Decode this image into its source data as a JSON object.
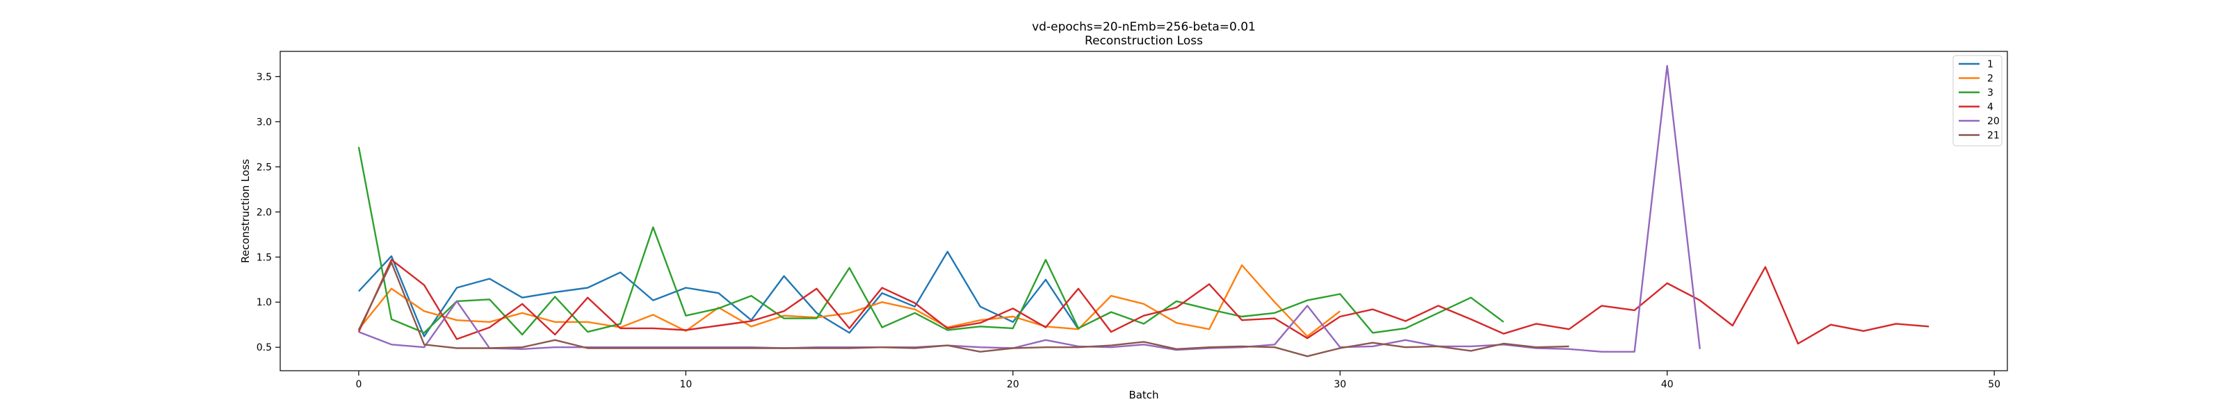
{
  "chart_data": {
    "type": "line",
    "title": "vd-epochs=20-nEmb=256-beta=0.01",
    "subtitle": "Reconstruction Loss",
    "xlabel": "Batch",
    "ylabel": "Reconstruction Loss",
    "xlim": [
      -2.4,
      50.4
    ],
    "ylim": [
      0.24,
      3.78
    ],
    "xticks": [
      0,
      10,
      20,
      30,
      40,
      50
    ],
    "yticks": [
      0.5,
      1.0,
      1.5,
      2.0,
      2.5,
      3.0,
      3.5
    ],
    "ytick_labels": [
      "0.5",
      "1.0",
      "1.5",
      "2.0",
      "2.5",
      "3.0",
      "3.5"
    ],
    "grid": false,
    "legend_position": "top-right",
    "series": [
      {
        "name": "1",
        "color": "#1f77b4",
        "x": [
          0,
          1,
          2,
          3,
          4,
          5,
          6,
          7,
          8,
          9,
          10,
          11,
          12,
          13,
          14,
          15,
          16,
          17,
          18,
          19,
          20,
          21,
          22
        ],
        "values": [
          1.12,
          1.51,
          0.62,
          1.16,
          1.26,
          1.05,
          1.11,
          1.16,
          1.33,
          1.02,
          1.16,
          1.1,
          0.8,
          1.29,
          0.88,
          0.66,
          1.1,
          0.95,
          1.56,
          0.95,
          0.78,
          1.25,
          0.7
        ]
      },
      {
        "name": "2",
        "color": "#ff7f0e",
        "x": [
          0,
          1,
          2,
          3,
          4,
          5,
          6,
          7,
          8,
          9,
          10,
          11,
          12,
          13,
          14,
          15,
          16,
          17,
          18,
          19,
          20,
          21,
          22,
          23,
          24,
          25,
          26,
          27,
          28,
          29,
          30
        ],
        "values": [
          0.7,
          1.15,
          0.9,
          0.8,
          0.78,
          0.88,
          0.78,
          0.78,
          0.72,
          0.86,
          0.68,
          0.94,
          0.73,
          0.85,
          0.83,
          0.88,
          1.0,
          0.92,
          0.72,
          0.8,
          0.84,
          0.73,
          0.7,
          1.07,
          0.98,
          0.77,
          0.7,
          1.41,
          1.0,
          0.62,
          0.9
        ]
      },
      {
        "name": "3",
        "color": "#2ca02c",
        "x": [
          0,
          1,
          2,
          3,
          4,
          5,
          6,
          7,
          8,
          9,
          10,
          11,
          12,
          13,
          14,
          15,
          16,
          17,
          18,
          19,
          20,
          21,
          22,
          23,
          24,
          25,
          26,
          27,
          28,
          29,
          30,
          31,
          32,
          33,
          34,
          35
        ],
        "values": [
          2.72,
          0.81,
          0.66,
          1.01,
          1.03,
          0.64,
          1.06,
          0.67,
          0.76,
          1.83,
          0.85,
          0.93,
          1.07,
          0.82,
          0.82,
          1.38,
          0.72,
          0.88,
          0.69,
          0.73,
          0.71,
          1.47,
          0.71,
          0.89,
          0.76,
          1.01,
          0.92,
          0.84,
          0.88,
          1.02,
          1.09,
          0.66,
          0.71,
          0.88,
          1.05,
          0.78
        ]
      },
      {
        "name": "4",
        "color": "#d62728",
        "x": [
          0,
          1,
          2,
          3,
          4,
          5,
          6,
          7,
          8,
          9,
          10,
          11,
          12,
          13,
          14,
          15,
          16,
          17,
          18,
          19,
          20,
          21,
          22,
          23,
          24,
          25,
          26,
          27,
          28,
          29,
          30,
          31,
          32,
          33,
          34,
          35,
          36,
          37,
          38,
          39,
          40,
          41,
          42,
          43,
          44,
          45,
          46,
          47,
          48
        ],
        "values": [
          0.67,
          1.47,
          1.19,
          0.59,
          0.72,
          0.98,
          0.64,
          1.05,
          0.71,
          0.71,
          0.69,
          0.74,
          0.79,
          0.9,
          1.15,
          0.71,
          1.16,
          0.99,
          0.71,
          0.77,
          0.93,
          0.72,
          1.15,
          0.67,
          0.85,
          0.94,
          1.2,
          0.8,
          0.82,
          0.6,
          0.84,
          0.92,
          0.79,
          0.96,
          0.81,
          0.65,
          0.76,
          0.7,
          0.96,
          0.91,
          1.21,
          1.02,
          0.74,
          1.39,
          0.54,
          0.75,
          0.68,
          0.76,
          0.73
        ]
      },
      {
        "name": "20",
        "color": "#9467bd",
        "x": [
          0,
          1,
          2,
          3,
          4,
          5,
          6,
          7,
          8,
          9,
          10,
          11,
          12,
          13,
          14,
          15,
          16,
          17,
          18,
          19,
          20,
          21,
          22,
          23,
          24,
          25,
          26,
          27,
          28,
          29,
          30,
          31,
          32,
          33,
          34,
          35,
          36,
          37,
          38,
          39,
          40,
          41
        ],
        "values": [
          0.67,
          0.53,
          0.5,
          1.01,
          0.49,
          0.48,
          0.5,
          0.5,
          0.5,
          0.5,
          0.5,
          0.5,
          0.5,
          0.49,
          0.5,
          0.5,
          0.5,
          0.5,
          0.52,
          0.5,
          0.49,
          0.58,
          0.51,
          0.5,
          0.53,
          0.47,
          0.49,
          0.5,
          0.53,
          0.96,
          0.5,
          0.51,
          0.58,
          0.51,
          0.51,
          0.53,
          0.49,
          0.48,
          0.45,
          0.45,
          3.62,
          0.48
        ]
      },
      {
        "name": "21",
        "color": "#8c564b",
        "x": [
          0,
          1,
          2,
          3,
          4,
          5,
          6,
          7,
          8,
          9,
          10,
          11,
          12,
          13,
          14,
          15,
          16,
          17,
          18,
          19,
          20,
          21,
          22,
          23,
          24,
          25,
          26,
          27,
          28,
          29,
          30,
          31,
          32,
          33,
          34,
          35,
          36,
          37
        ],
        "values": [
          0.69,
          1.44,
          0.53,
          0.49,
          0.49,
          0.5,
          0.58,
          0.49,
          0.49,
          0.49,
          0.49,
          0.49,
          0.49,
          0.49,
          0.49,
          0.49,
          0.5,
          0.49,
          0.52,
          0.45,
          0.49,
          0.5,
          0.5,
          0.52,
          0.56,
          0.48,
          0.5,
          0.51,
          0.5,
          0.4,
          0.49,
          0.55,
          0.5,
          0.51,
          0.46,
          0.54,
          0.5,
          0.51
        ]
      }
    ]
  }
}
